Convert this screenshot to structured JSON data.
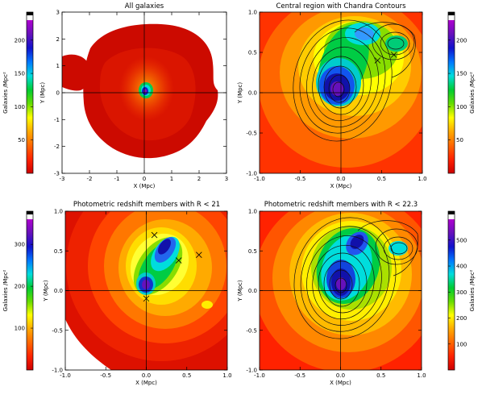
{
  "figure": {
    "panels": [
      {
        "key": "p1",
        "title": "All galaxies",
        "xlabel": "X (Mpc)",
        "ylabel": "Y (Mpc)",
        "xlim": [
          -3,
          3
        ],
        "ylim": [
          -3,
          3
        ],
        "xticks": [
          "-3",
          "-2",
          "-1",
          "0",
          "1",
          "2",
          "3"
        ],
        "yticks": [
          "-3",
          "-2",
          "-1",
          "0",
          "1",
          "2",
          "3"
        ],
        "contours": false,
        "crosses": []
      },
      {
        "key": "p2",
        "title": "Central region with Chandra Contours",
        "xlabel": "X (Mpc)",
        "ylabel": "Y (Mpc)",
        "xlim": [
          -1,
          1
        ],
        "ylim": [
          -1,
          1
        ],
        "xticks": [
          "-1.0",
          "-0.5",
          "0.0",
          "0.5",
          "1.0"
        ],
        "yticks": [
          "-1.0",
          "-0.5",
          "0.0",
          "0.5",
          "1.0"
        ],
        "contours": true,
        "crosses": [
          [
            0.45,
            0.4
          ],
          [
            0.65,
            0.47
          ]
        ]
      },
      {
        "key": "p3",
        "title": "Photometric redshift members with R < 21",
        "xlabel": "X (Mpc)",
        "ylabel": "Y (Mpc)",
        "xlim": [
          -1,
          1
        ],
        "ylim": [
          -1,
          1
        ],
        "xticks": [
          "-1.0",
          "-0.5",
          "0.0",
          "0.5",
          "1.0"
        ],
        "yticks": [
          "-1.0",
          "-0.5",
          "0.0",
          "0.5",
          "1.0"
        ],
        "contours": false,
        "crosses": [
          [
            0.1,
            0.7
          ],
          [
            0.4,
            0.38
          ],
          [
            0.65,
            0.45
          ],
          [
            0.0,
            -0.1
          ]
        ]
      },
      {
        "key": "p4",
        "title": "Photometric redshift members with R < 22.3",
        "xlabel": "X (Mpc)",
        "ylabel": "Y (Mpc)",
        "xlim": [
          -1,
          1
        ],
        "ylim": [
          -1,
          1
        ],
        "xticks": [
          "-1.0",
          "-0.5",
          "0.0",
          "0.5",
          "1.0"
        ],
        "yticks": [
          "-1.0",
          "-0.5",
          "0.0",
          "0.5",
          "1.0"
        ],
        "contours": true,
        "crosses": []
      }
    ],
    "colorbars": [
      {
        "key": "cb1",
        "label": "Galaxies /Mpc²",
        "ticks": [
          "50",
          "100",
          "150",
          "200"
        ]
      },
      {
        "key": "cb2",
        "label": "Galaxies /Mpc²",
        "ticks": [
          "50",
          "100",
          "150",
          "200"
        ]
      },
      {
        "key": "cb3",
        "label": "Galaxies /Mpc²",
        "ticks": [
          "100",
          "200",
          "300"
        ]
      },
      {
        "key": "cb4",
        "label": "Galaxies /Mpc²",
        "ticks": [
          "100",
          "200",
          "300",
          "400",
          "500"
        ]
      }
    ]
  },
  "chart_data": [
    {
      "type": "heatmap",
      "title": "All galaxies",
      "xlabel": "X (Mpc)",
      "ylabel": "Y (Mpc)",
      "xlim": [
        -3,
        3
      ],
      "ylim": [
        -3,
        3
      ],
      "colorbar_label": "Galaxies /Mpc²",
      "colorbar_range": [
        0,
        230
      ],
      "peaks": [
        {
          "x": 0.0,
          "y": 0.0,
          "value": 210
        }
      ],
      "regions": [
        {
          "x": -2.8,
          "y": 0.8,
          "value": 15
        },
        {
          "x": 0.3,
          "y": 0.2,
          "value": 40
        }
      ]
    },
    {
      "type": "heatmap",
      "title": "Central region with Chandra Contours",
      "xlabel": "X (Mpc)",
      "ylabel": "Y (Mpc)",
      "xlim": [
        -1,
        1
      ],
      "ylim": [
        -1,
        1
      ],
      "colorbar_label": "Galaxies /Mpc²",
      "colorbar_range": [
        0,
        230
      ],
      "peaks": [
        {
          "x": -0.05,
          "y": 0.05,
          "value": 210
        },
        {
          "x": 0.2,
          "y": 0.6,
          "value": 110
        },
        {
          "x": 0.7,
          "y": 0.6,
          "value": 60
        }
      ],
      "overlay": "Chandra X-ray contours",
      "markers": [
        {
          "x": 0.45,
          "y": 0.4,
          "symbol": "x"
        },
        {
          "x": 0.65,
          "y": 0.47,
          "symbol": "x"
        }
      ]
    },
    {
      "type": "heatmap",
      "title": "Photometric redshift members with R < 21",
      "xlabel": "X (Mpc)",
      "ylabel": "Y (Mpc)",
      "xlim": [
        -1,
        1
      ],
      "ylim": [
        -1,
        1
      ],
      "colorbar_label": "Galaxies /Mpc²",
      "colorbar_range": [
        0,
        360
      ],
      "peaks": [
        {
          "x": 0.0,
          "y": 0.05,
          "value": 320
        },
        {
          "x": 0.25,
          "y": 0.55,
          "value": 300
        },
        {
          "x": 0.75,
          "y": -0.15,
          "value": 90
        }
      ],
      "markers": [
        {
          "x": 0.1,
          "y": 0.7,
          "symbol": "x"
        },
        {
          "x": 0.4,
          "y": 0.38,
          "symbol": "x"
        },
        {
          "x": 0.65,
          "y": 0.45,
          "symbol": "x"
        },
        {
          "x": 0.0,
          "y": -0.1,
          "symbol": "x"
        }
      ]
    },
    {
      "type": "heatmap",
      "title": "Photometric redshift members with R < 22.3",
      "xlabel": "X (Mpc)",
      "ylabel": "Y (Mpc)",
      "xlim": [
        -1,
        1
      ],
      "ylim": [
        -1,
        1
      ],
      "colorbar_label": "Galaxies /Mpc²",
      "colorbar_range": [
        0,
        580
      ],
      "peaks": [
        {
          "x": 0.0,
          "y": 0.05,
          "value": 520
        },
        {
          "x": 0.2,
          "y": 0.62,
          "value": 400
        },
        {
          "x": 0.7,
          "y": 0.55,
          "value": 230
        }
      ],
      "overlay": "Chandra X-ray contours"
    }
  ],
  "colors": {
    "colormap": [
      "#cc0000",
      "#ff2200",
      "#ff6600",
      "#ffaa00",
      "#ffff00",
      "#66dd00",
      "#00cc33",
      "#00dddd",
      "#0077ff",
      "#1111cc",
      "#6611bb",
      "#b000d0"
    ]
  }
}
